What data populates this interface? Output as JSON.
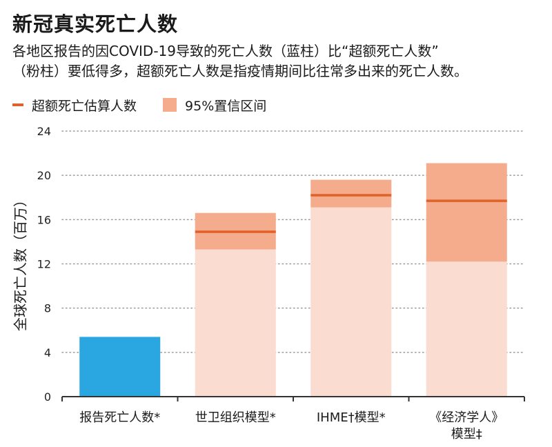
{
  "header": {
    "title": "新冠真实死亡人数",
    "subtitle_line1": "各地区报告的因COVID-19导致的死亡人数（蓝柱）比“超额死亡人数”",
    "subtitle_line2": "（粉柱）要低得多，超额死亡人数是指疫情期间比往常多出来的死亡人数。"
  },
  "legend": {
    "estimate_label": "超额死亡估算人数",
    "interval_label": "95%置信区间"
  },
  "colors": {
    "reported": "#2aa6e0",
    "bar_light": "#fbdcd0",
    "interval": "#f4ac8c",
    "estimate_line": "#e0622a",
    "grid": "#999999",
    "axis": "#333333"
  },
  "chart_data": {
    "type": "bar",
    "title": "新冠真实死亡人数",
    "ylabel": "全球死亡人数（百万）",
    "ylim": [
      0,
      24
    ],
    "yticks": [
      0,
      4,
      8,
      12,
      16,
      20,
      24
    ],
    "grid": true,
    "legend_position": "top-left",
    "categories": [
      "报告死亡人数*",
      "世卫组织模型*",
      "IHME†模型*",
      "《经济学人》模型‡"
    ],
    "reported": [
      5.4,
      null,
      null,
      null
    ],
    "excess_estimate": [
      null,
      14.9,
      18.2,
      17.7
    ],
    "ci_low": [
      null,
      13.3,
      17.1,
      12.2
    ],
    "ci_high": [
      null,
      16.6,
      19.6,
      21.1
    ]
  }
}
